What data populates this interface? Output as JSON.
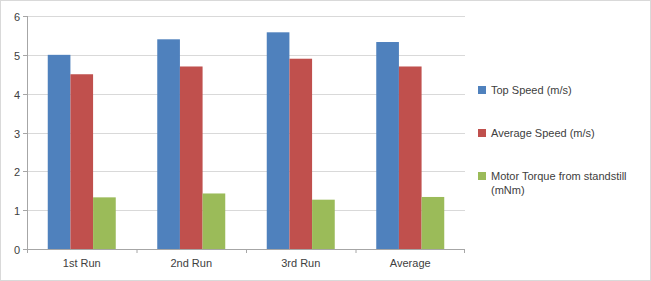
{
  "chart_data": {
    "type": "bar",
    "categories": [
      "1st Run",
      "2nd Run",
      "3rd Run",
      "Average"
    ],
    "series": [
      {
        "name": "Top Speed (m/s)",
        "color": "#4f81bd",
        "values": [
          5.0,
          5.4,
          5.58,
          5.33
        ]
      },
      {
        "name": "Average Speed (m/s)",
        "color": "#c0504d",
        "values": [
          4.5,
          4.7,
          4.9,
          4.7
        ]
      },
      {
        "name": "Motor Torque from standstill (mNm)",
        "color": "#9bbb59",
        "values": [
          1.33,
          1.43,
          1.27,
          1.34
        ]
      }
    ],
    "ylim": [
      0,
      6
    ],
    "yticks": [
      0,
      1,
      2,
      3,
      4,
      5,
      6
    ],
    "grid": true,
    "legend": "right"
  }
}
